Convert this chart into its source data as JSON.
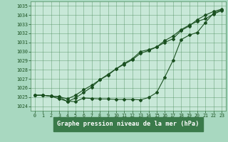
{
  "title": "Graphe pression niveau de la mer (hPa)",
  "background_color": "#a8d8c0",
  "plot_bg_color": "#c8e8d8",
  "grid_color": "#4a8a5a",
  "line_color": "#1a5020",
  "label_bg_color": "#3a7a4a",
  "ylim": [
    1023.5,
    1035.5
  ],
  "xlim": [
    -0.5,
    23.5
  ],
  "yticks": [
    1024,
    1025,
    1026,
    1027,
    1028,
    1029,
    1030,
    1031,
    1032,
    1033,
    1034,
    1035
  ],
  "xticks": [
    0,
    1,
    2,
    3,
    4,
    5,
    6,
    7,
    8,
    9,
    10,
    11,
    12,
    13,
    14,
    15,
    16,
    17,
    18,
    19,
    20,
    21,
    22,
    23
  ],
  "series1": [
    1025.2,
    1025.2,
    1025.1,
    1024.8,
    1024.55,
    1024.5,
    1024.9,
    1024.85,
    1024.8,
    1024.8,
    1024.75,
    1024.75,
    1024.75,
    1024.7,
    1024.95,
    1025.5,
    1027.2,
    1029.0,
    1031.3,
    1031.8,
    1032.1,
    1033.2,
    1034.2,
    1034.6
  ],
  "series2": [
    1025.2,
    1025.2,
    1025.1,
    1025.05,
    1024.8,
    1025.2,
    1025.8,
    1026.3,
    1026.9,
    1027.4,
    1028.1,
    1028.6,
    1029.1,
    1029.8,
    1030.1,
    1030.5,
    1031.2,
    1031.7,
    1032.4,
    1032.9,
    1033.3,
    1033.6,
    1034.1,
    1034.5
  ],
  "series3": [
    1025.2,
    1025.2,
    1025.1,
    1025.05,
    1024.5,
    1024.9,
    1025.5,
    1026.1,
    1026.9,
    1027.5,
    1028.1,
    1028.7,
    1029.2,
    1030.0,
    1030.2,
    1030.5,
    1031.0,
    1031.4,
    1032.3,
    1032.8,
    1033.5,
    1034.0,
    1034.4,
    1034.65
  ]
}
